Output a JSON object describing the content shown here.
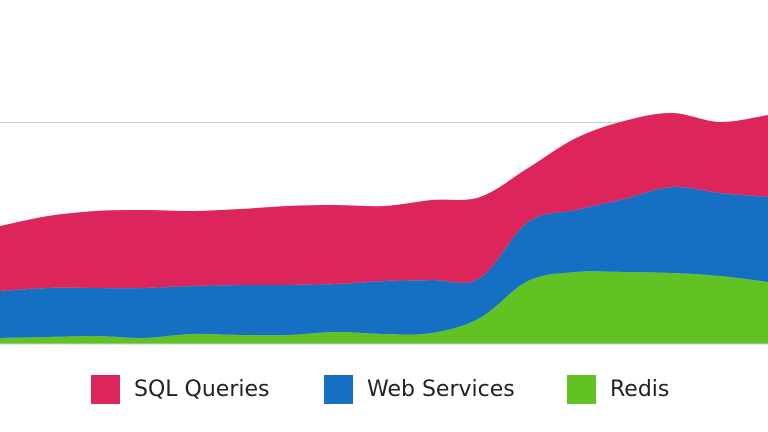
{
  "chart_data": {
    "type": "stacked-area",
    "categories": [
      null,
      null,
      null,
      null,
      null,
      null,
      null,
      null,
      null,
      null,
      null,
      null,
      null,
      null,
      null,
      null,
      null
    ],
    "ylim": [
      0,
      344
    ],
    "series": [
      {
        "name": "SQL Queries",
        "color": "#dc265b",
        "values": [
          65,
          72,
          77,
          78,
          75,
          76,
          79,
          79,
          75,
          80,
          81,
          54,
          72,
          78,
          74,
          71,
          82
        ]
      },
      {
        "name": "Web Services",
        "color": "#1570c4",
        "values": [
          47,
          49,
          48,
          50,
          48,
          50,
          50,
          48,
          53,
          53,
          40,
          59,
          62,
          73,
          86,
          83,
          85
        ]
      },
      {
        "name": "Redis",
        "color": "#62c224",
        "values": [
          6,
          7,
          8,
          6,
          10,
          9,
          9,
          12,
          10,
          11,
          26,
          63,
          72,
          72,
          71,
          68,
          62
        ]
      }
    ]
  }
}
